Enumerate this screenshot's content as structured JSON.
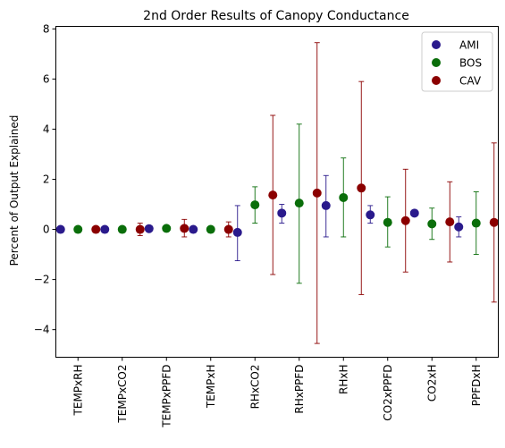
{
  "chart_data": {
    "type": "scatter",
    "title": "2nd Order Results of Canopy Conductance",
    "xlabel": "",
    "ylabel": "Percent of Output Explained",
    "categories": [
      "TEMPxRH",
      "TEMPxCO2",
      "TEMPxPPFD",
      "TEMPxH",
      "RHxCO2",
      "RHxPPFD",
      "RHxH",
      "CO2xPPFD",
      "CO2xH",
      "PPFDxH"
    ],
    "ylim": [
      -5.1,
      8.1
    ],
    "yticks": [
      -4,
      -2,
      0,
      2,
      4,
      6,
      8
    ],
    "grid": false,
    "legend_position": "top-right",
    "series": [
      {
        "name": "AMI",
        "color": "#2a1a8c",
        "values": [
          0.0,
          0.0,
          0.03,
          0.0,
          -0.12,
          0.65,
          0.95,
          0.58,
          0.65,
          0.1
        ],
        "err_low": [
          0.0,
          0.0,
          -0.05,
          -0.05,
          -1.25,
          0.25,
          -0.3,
          0.25,
          0.65,
          -0.3
        ],
        "err_high": [
          0.0,
          0.0,
          0.1,
          0.05,
          0.95,
          1.0,
          2.15,
          0.95,
          0.65,
          0.5
        ]
      },
      {
        "name": "BOS",
        "color": "#0a6e0a",
        "values": [
          0.0,
          0.0,
          0.04,
          0.0,
          0.98,
          1.05,
          1.27,
          0.28,
          0.22,
          0.25
        ],
        "err_low": [
          -0.05,
          -0.05,
          -0.05,
          -0.05,
          0.25,
          -2.15,
          -0.3,
          -0.7,
          -0.4,
          -1.0
        ],
        "err_high": [
          0.05,
          0.05,
          0.15,
          0.05,
          1.7,
          4.2,
          2.85,
          1.3,
          0.85,
          1.5
        ]
      },
      {
        "name": "CAV",
        "color": "#8b0000",
        "values": [
          0.0,
          0.0,
          0.04,
          0.0,
          1.37,
          1.45,
          1.65,
          0.35,
          0.3,
          0.28
        ],
        "err_low": [
          -0.05,
          -0.25,
          -0.3,
          -0.3,
          -1.8,
          -4.55,
          -2.6,
          -1.7,
          -1.3,
          -2.9
        ],
        "err_high": [
          0.05,
          0.25,
          0.4,
          0.3,
          4.55,
          7.45,
          5.9,
          2.4,
          1.9,
          3.45
        ]
      }
    ]
  }
}
